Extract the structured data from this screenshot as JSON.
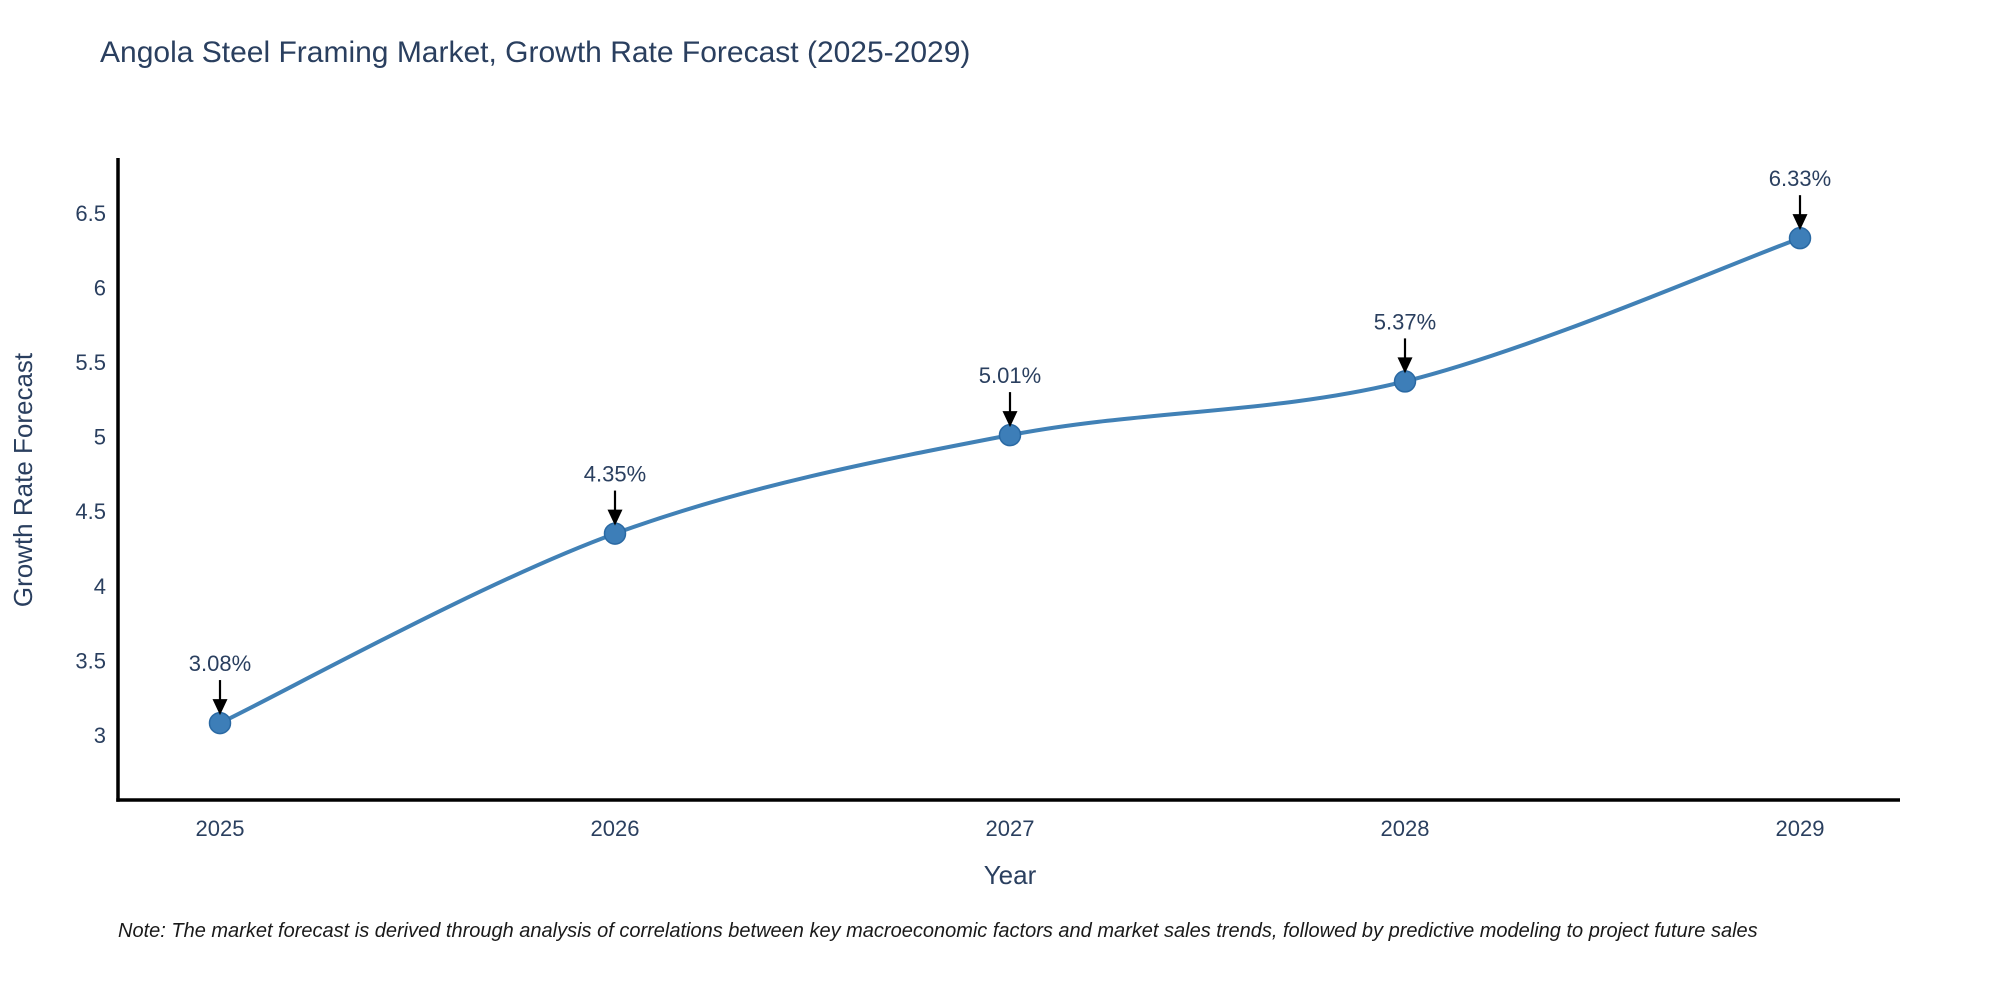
{
  "chart_data": {
    "type": "line",
    "title": "Angola Steel Framing Market, Growth Rate Forecast (2025-2029)",
    "x_labels": [
      "2025",
      "2026",
      "2027",
      "2028",
      "2029"
    ],
    "x": [
      2025,
      2026,
      2027,
      2028,
      2029
    ],
    "values": [
      3.08,
      4.35,
      5.01,
      5.37,
      6.33
    ],
    "point_labels": [
      "3.08%",
      "4.35%",
      "5.01%",
      "5.37%",
      "6.33%"
    ],
    "xlabel": "Year",
    "ylabel": "Growth Rate Forecast",
    "yticks": [
      3,
      3.5,
      4,
      4.5,
      5,
      5.5,
      6,
      6.5
    ],
    "ytick_labels": [
      "3",
      "3.5",
      "4",
      "4.5",
      "5",
      "5.5",
      "6",
      "6.5"
    ],
    "ylim": [
      2.56,
      6.85
    ],
    "line_shape": "spline",
    "grid": false,
    "legend": "none",
    "colors": {
      "line": "#4181b6",
      "marker_fill": "#3d7eb8",
      "marker_edge": "#2a69a3",
      "text": "#2a3f5f",
      "axis": "#000000",
      "annotation_arrow": "#000000"
    },
    "note": "Note: The market forecast is derived through analysis of correlations between key macroeconomic factors and market sales trends, followed by predictive modeling to project future sales"
  }
}
